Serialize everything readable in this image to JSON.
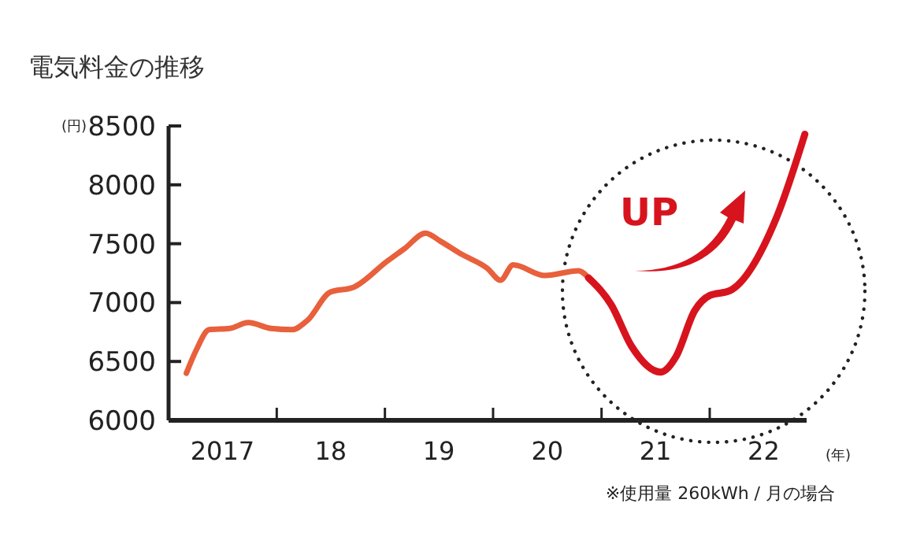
{
  "chart_data": {
    "type": "line",
    "title": "電気料金の推移",
    "ylabel": "(円)",
    "xlabel": "(年)",
    "xlim": [
      "2017-01-01",
      "2022-11-24"
    ],
    "xticks": [
      {
        "value": "2017-07-02",
        "label": "2017"
      },
      {
        "value": "2018-01-01",
        "label": null
      },
      {
        "value": "2018-07-02",
        "label": "18"
      },
      {
        "value": "2019-01-01",
        "label": null
      },
      {
        "value": "2019-07-02",
        "label": "19"
      },
      {
        "value": "2020-01-01",
        "label": null
      },
      {
        "value": "2020-07-02",
        "label": "20"
      },
      {
        "value": "2021-01-01",
        "label": null
      },
      {
        "value": "2021-07-02",
        "label": "21"
      },
      {
        "value": "2022-01-01",
        "label": null
      },
      {
        "value": "2022-07-02",
        "label": "22"
      }
    ],
    "ylim": [
      6000,
      8500
    ],
    "yticks": [
      6000,
      6500,
      7000,
      7500,
      8000,
      8500
    ],
    "line_style": "solid",
    "series": [
      {
        "color": "#e8603c",
        "x": [
          "2017-03-02",
          "2017-04-05",
          "2017-05-18",
          "2017-07-26",
          "2017-09-27",
          "2017-12-13",
          "2018-02-21",
          "2018-04-15",
          "2018-07-01",
          "2018-09-17",
          "2019-01-08",
          "2019-03-09",
          "2019-05-18",
          "2019-07-08",
          "2019-09-17",
          "2019-12-13",
          "2020-01-26",
          "2020-03-09",
          "2020-06-24",
          "2020-10-15",
          "2020-11-18"
        ],
        "values": [
          6400,
          6600,
          6770,
          6780,
          6830,
          6780,
          6770,
          6850,
          7090,
          7130,
          7350,
          7460,
          7590,
          7520,
          7410,
          7290,
          7190,
          7320,
          7230,
          7270,
          7210
        ]
      },
      {
        "color": "#d7141e",
        "x": [
          "2020-11-18",
          "2021-02-03",
          "2021-04-12",
          "2021-07-19",
          "2021-09-09",
          "2021-11-11",
          "2022-01-01",
          "2022-03-09",
          "2022-08-14",
          "2022-11-18"
        ],
        "values": [
          7210,
          6980,
          6630,
          6410,
          6540,
          6930,
          7060,
          7100,
          7720,
          8430
        ]
      }
    ],
    "annotations": [
      "UP",
      "※使用量 260kWh / 月の場合"
    ]
  }
}
